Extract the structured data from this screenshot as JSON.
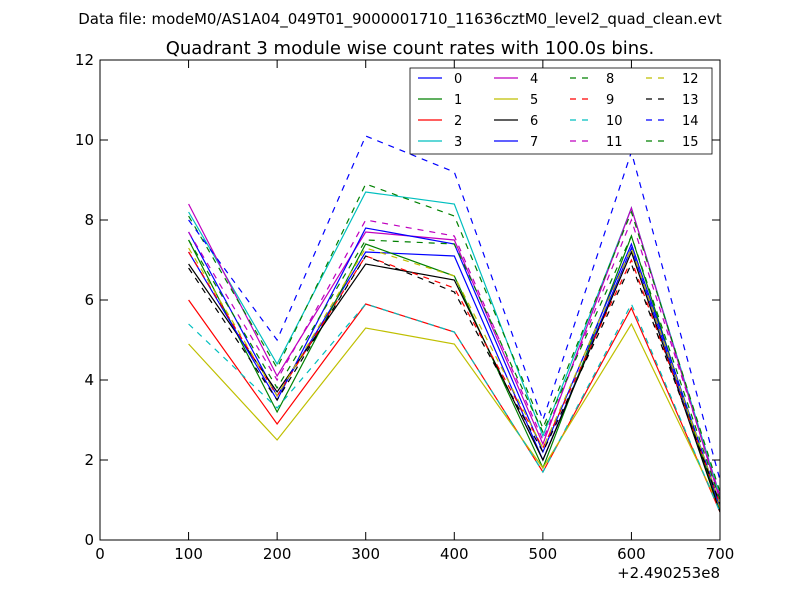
{
  "chart_data": {
    "type": "line",
    "suptitle": "Data file: modeM0/AS1A04_049T01_9000001710_11636cztM0_level2_quad_clean.evt",
    "title": "Quadrant 3 module wise count rates with 100.0s bins.",
    "xlabel": "",
    "ylabel": "",
    "x_offset_label": "+2.490253e8",
    "xlim": [
      0,
      700
    ],
    "ylim": [
      0,
      12
    ],
    "xticks": [
      0,
      100,
      200,
      300,
      400,
      500,
      600,
      700
    ],
    "yticks": [
      0,
      2,
      4,
      6,
      8,
      10,
      12
    ],
    "grid": false,
    "legend_position": "top-right",
    "x": [
      100,
      200,
      300,
      400,
      500,
      600,
      700
    ],
    "series": [
      {
        "name": "0",
        "color": "#0000ff",
        "dashed": false,
        "values": [
          7.7,
          3.6,
          7.2,
          7.1,
          2.0,
          7.3,
          0.8
        ]
      },
      {
        "name": "1",
        "color": "#008000",
        "dashed": false,
        "values": [
          7.5,
          3.2,
          7.4,
          6.6,
          1.8,
          7.6,
          0.7
        ]
      },
      {
        "name": "2",
        "color": "#ff0000",
        "dashed": false,
        "values": [
          6.0,
          2.9,
          5.9,
          5.2,
          1.7,
          5.8,
          0.7
        ]
      },
      {
        "name": "3",
        "color": "#00bfbf",
        "dashed": false,
        "values": [
          8.2,
          4.4,
          8.7,
          8.4,
          2.6,
          8.3,
          1.1
        ]
      },
      {
        "name": "4",
        "color": "#bf00bf",
        "dashed": false,
        "values": [
          8.4,
          4.1,
          7.7,
          7.5,
          2.4,
          8.3,
          1.0
        ]
      },
      {
        "name": "5",
        "color": "#bfbf00",
        "dashed": false,
        "values": [
          4.9,
          2.5,
          5.3,
          4.9,
          1.8,
          5.4,
          0.8
        ]
      },
      {
        "name": "6",
        "color": "#000000",
        "dashed": false,
        "values": [
          6.9,
          3.7,
          6.9,
          6.5,
          2.0,
          7.2,
          0.7
        ]
      },
      {
        "name": "7",
        "color": "#0000ff",
        "dashed": false,
        "values": [
          7.2,
          3.5,
          7.8,
          7.4,
          2.2,
          7.4,
          0.9
        ]
      },
      {
        "name": "8",
        "color": "#008000",
        "dashed": true,
        "values": [
          8.1,
          4.3,
          8.9,
          8.1,
          2.8,
          8.2,
          1.2
        ]
      },
      {
        "name": "9",
        "color": "#ff0000",
        "dashed": true,
        "values": [
          7.2,
          3.6,
          7.1,
          6.3,
          2.3,
          7.0,
          0.9
        ]
      },
      {
        "name": "10",
        "color": "#00bfbf",
        "dashed": true,
        "values": [
          5.4,
          3.3,
          5.9,
          5.2,
          1.7,
          5.9,
          0.7
        ]
      },
      {
        "name": "11",
        "color": "#bf00bf",
        "dashed": true,
        "values": [
          7.7,
          4.0,
          8.0,
          7.6,
          2.5,
          8.0,
          1.1
        ]
      },
      {
        "name": "12",
        "color": "#bfbf00",
        "dashed": true,
        "values": [
          7.3,
          3.6,
          7.3,
          6.6,
          2.3,
          7.3,
          0.9
        ]
      },
      {
        "name": "13",
        "color": "#000000",
        "dashed": true,
        "values": [
          6.8,
          3.5,
          7.1,
          6.2,
          2.2,
          6.9,
          0.9
        ]
      },
      {
        "name": "14",
        "color": "#0000ff",
        "dashed": true,
        "values": [
          8.0,
          5.0,
          10.1,
          9.2,
          3.0,
          9.7,
          1.5
        ]
      },
      {
        "name": "15",
        "color": "#008000",
        "dashed": true,
        "values": [
          7.5,
          3.8,
          7.5,
          7.4,
          2.7,
          7.6,
          1.0
        ]
      }
    ]
  }
}
